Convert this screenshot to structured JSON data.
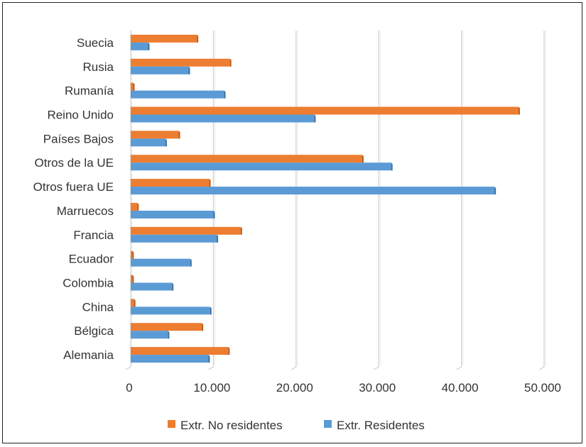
{
  "chart_data": {
    "type": "bar",
    "orientation": "horizontal",
    "categories": [
      "Alemania",
      "Bélgica",
      "China",
      "Colombia",
      "Ecuador",
      "Francia",
      "Marruecos",
      "Otros fuera UE",
      "Otros de la UE",
      "Países Bajos",
      "Reino Unido",
      "Rumanía",
      "Rusia",
      "Suecia"
    ],
    "series": [
      {
        "name": "Extr. No residentes",
        "color": "#ED7D31",
        "values": [
          11800,
          8600,
          400,
          200,
          200,
          13300,
          800,
          9500,
          28000,
          5800,
          46900,
          300,
          12000,
          8000
        ]
      },
      {
        "name": "Extr. Residentes",
        "color": "#5B9BD5",
        "values": [
          9400,
          4500,
          9600,
          5000,
          7200,
          10400,
          10000,
          44000,
          31500,
          4200,
          22200,
          11300,
          7000,
          2100
        ]
      }
    ],
    "xlim": [
      0,
      50000
    ],
    "xticks": [
      "0",
      "10.000",
      "20.000",
      "30.000",
      "40.000",
      "50.000"
    ],
    "xtick_values": [
      0,
      10000,
      20000,
      30000,
      40000,
      50000
    ],
    "grid": true,
    "legend": "bottom",
    "title": "",
    "xlabel": "",
    "ylabel": ""
  }
}
